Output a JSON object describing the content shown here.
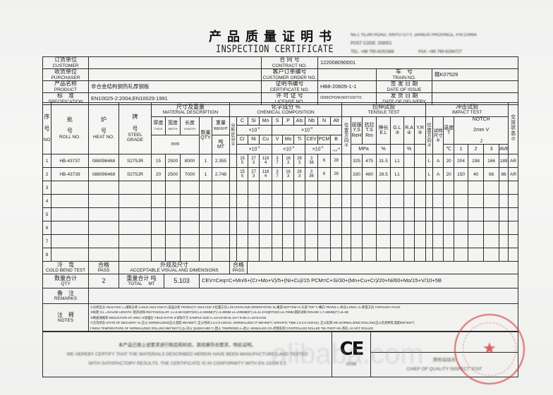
{
  "title_cn": "产品质量证明书",
  "title_en": "INSPECTION CERTIFICATE",
  "company": {
    "address": "No.1 YEJIN ROAD, XINYU CITY, JIANGXI PROVINCE, P.R.CHINA",
    "post": "POST CODE: 338001",
    "tel": "TEL: +86 790-6292388",
    "fax": "FAX: +86 790-6294727"
  },
  "info": {
    "customer": {
      "cn": "订货单位",
      "en": "CUSTOMER",
      "value": ""
    },
    "purchaser": {
      "cn": "收货单位",
      "en": "PURCHASER",
      "value": ""
    },
    "product": {
      "cn": "产品名称",
      "en": "PRODUCT",
      "value": "非合金结构钢热轧厚钢板"
    },
    "specification": {
      "cn": "标　准",
      "en": "SPECIFICATION",
      "value": "EN10025-2:2004,EN10029:1991"
    },
    "contract_no": {
      "cn": "合 同 号",
      "en": "CONTRACT NO.",
      "value": "122008090001"
    },
    "customer_order_no": {
      "cn": "客户订单编号",
      "en": "CUSTOMER ORDER NO.",
      "value": ""
    },
    "certificate_no": {
      "cn": "证明书编号",
      "en": "CERTIFICATE NO.",
      "value": "HB8-20609-1-1"
    },
    "license_no": {
      "cn": "许 可 证 号",
      "en": "LICENSE NO.",
      "value": "0038/CPD/M.M/0710077/1"
    },
    "train_no": {
      "cn": "车　号",
      "en": "TRAIN NO.",
      "value": "赣K07529"
    },
    "date_of_issue": {
      "cn": "签 发 日 期",
      "en": "DATE OF ISSUE",
      "value": ""
    },
    "date_of_delivery": {
      "cn": "发 货 日 期",
      "en": "DATE OF DELIVERY",
      "value": ""
    }
  },
  "headers": {
    "no": {
      "cn1": "序",
      "cn2": "号",
      "en": "NO"
    },
    "roll": {
      "cn1": "批",
      "cn2": "号",
      "en": "ROLL NO."
    },
    "heat": {
      "cn1": "炉",
      "cn2": "号",
      "en": "HEAT NO."
    },
    "grade": {
      "cn1": "牌",
      "cn2": "号",
      "en": "STEEL GRADE"
    },
    "material": {
      "cn": "尺寸及重量",
      "en": "MATERIAL DESCRIPTION"
    },
    "thick": {
      "cn": "厚度",
      "en": "THICK"
    },
    "width": {
      "cn": "宽度",
      "en": "WIDTH"
    },
    "length": {
      "cn": "长度",
      "en": "LENGTH"
    },
    "mm": "mm",
    "qty": {
      "cn": "数量",
      "en": "QTY"
    },
    "weight": {
      "cn": "重量",
      "en": "WEIGHT",
      "unit_cn": "吨",
      "unit_en": "MT"
    },
    "chemical": {
      "cn": "化学成分 %",
      "en": "CHEMICAL COMPOSITION"
    },
    "analysis": "分析区分①",
    "elements_row1": [
      "C",
      "Si",
      "Mn",
      "S",
      "P",
      "Als",
      "Nb",
      "N",
      "Alt"
    ],
    "elements_row2": [
      "Cr",
      "Ni",
      "Cu",
      "V",
      "Mo",
      "Ti",
      "CEV",
      "PCM",
      "B"
    ],
    "factor_e2": "×10",
    "exp_2": "-2",
    "exp_3": "-3",
    "exp_4": "-4",
    "tensile": {
      "cn": "拉伸试验",
      "en": "TENSILE TEST"
    },
    "position": "位置方向②",
    "ys": {
      "cn": "屈服",
      "en": "Y.S",
      "sub": "ReH"
    },
    "ts": {
      "cn": "抗拉",
      "en": "T.S",
      "sub": "Rm"
    },
    "el": {
      "cn": "伸长",
      "en": "E.L"
    },
    "gl": {
      "en": "G.L",
      "mark": "③"
    },
    "ra": {
      "en": "R.A",
      "mark": "④"
    },
    "yr": {
      "en": "Y.R",
      "mark": "⑤"
    },
    "mpa": "MPa",
    "pct": "%",
    "impact": {
      "cn": "冲击试验",
      "en": "IMPACT TEST"
    },
    "sample": "试样尺寸⑥",
    "temp": {
      "cn": "温度",
      "en": "T",
      "unit": "℃"
    },
    "notch": {
      "en": "NOTCH",
      "type": "2mm V",
      "unit": "J"
    },
    "impact_cols": [
      "1",
      "2",
      "3",
      "AVE"
    ],
    "delivery": "交货状态⑦"
  },
  "rows": [
    {
      "no": "1",
      "roll": "HB-43737",
      "heat": "088096468",
      "grade": "S275JR",
      "thick": "15",
      "width": "2500",
      "length": "8000",
      "qty": "1",
      "weight": "2.355",
      "analysis": "",
      "chem": [
        [
          "15",
          "5"
        ],
        [
          "27",
          "3"
        ],
        [
          "118",
          "4"
        ],
        [
          "3",
          "7"
        ],
        [
          "16",
          "3"
        ],
        [
          "26",
          "3"
        ],
        [
          "3",
          "36"
        ],
        [
          "6",
          ""
        ],
        [
          "28",
          ""
        ]
      ],
      "tensile": [
        "",
        "325",
        "475",
        "31.5",
        "L1",
        "",
        ""
      ],
      "impact": [
        "L",
        "A",
        "20",
        "204",
        "198",
        "166",
        "189"
      ],
      "delivery": "AR"
    },
    {
      "no": "2",
      "roll": "HB-43739",
      "heat": "088096468",
      "grade": "S275JR",
      "thick": "20",
      "width": "2500",
      "length": "7000",
      "qty": "1",
      "weight": "2.748",
      "analysis": "",
      "chem": [
        [
          "15",
          "5"
        ],
        [
          "27",
          "3"
        ],
        [
          "118",
          "4"
        ],
        [
          "3",
          "7"
        ],
        [
          "16",
          "3"
        ],
        [
          "26",
          "3"
        ],
        [
          "3",
          "36"
        ],
        [
          "6",
          ""
        ],
        [
          "28",
          ""
        ]
      ],
      "tensile": [
        "",
        "330",
        "480",
        "26.5",
        "L1",
        "",
        ""
      ],
      "impact": [
        "L",
        "A",
        "20",
        "150",
        "40",
        "68",
        "86"
      ],
      "delivery": "AR"
    },
    {
      "no": "3"
    },
    {
      "no": "4"
    },
    {
      "no": "5"
    },
    {
      "no": "6"
    },
    {
      "no": "7"
    },
    {
      "no": "8"
    }
  ],
  "summary": {
    "cold_bend": {
      "cn": "冷　弯",
      "en": "COLD BEND TEST",
      "result_cn": "合格",
      "result_en": "PASS"
    },
    "visual": {
      "cn": "外观及尺寸",
      "en": "ACCEPTABLE VISUAL AND DIMENSIONS",
      "result_cn": "合格",
      "result_en": "PASS"
    },
    "qty": {
      "cn": "数量合计",
      "en": "QTY",
      "value": "2"
    },
    "total": {
      "cn": "重量合计",
      "en": "TOTAL",
      "unit_cn": "吨",
      "unit_en": "MT",
      "value": "5.103"
    },
    "formula": "CEV=Ceq=C+Mn/6+(Cr+Mo+V)/5+(Ni+Cu)/15    PCM=C+Si/30+(Mn+Cu+Cr)/20+Ni/60+Mo/15+V/10+5B",
    "remarks": {
      "cn": "备　注",
      "en": "REMARKS",
      "value": ""
    },
    "notes": {
      "cn": "注　释",
      "en": "NOTES",
      "lines": [
        "①分析区分 ANALYSIS: L=熔炼分析 LADLE ANALYSIS  P=成品分析 PRODUCT ANALYSIS  ②位置方向 LOCATION AND ORIENTATION: B=尾部 BOTTOM  H=头部 TOP  T=横向 TRANS L=纵向 LONGI.  Z=厚度方向 THROUGH-THICK",
        "③标距 G.L.=GAUGE LENGTH: 矩形试样 RECTANGULAR: L1=5.65×SQRT(S0)  L2=50MM(2\")  L3=80MM  L4=200MM(8\")  L5=11.3×SQRT(S0)  L6=70MM  圆形试样 ROUND: L7=50MM(2\")  L8=5D",
        "④断面收缩率 REDUCTION OF AREA ⑤屈强比 YIELD RATIO ⑥试样尺寸 SAMPLE SIZE  A=10×10×55  B=10×7.5×55  C=10×5.0×55",
        "⑦交货状态 STATE OF DELIVERY: N=正火 NORMALIZED(正火温度 900-950℃  正火时间:1.5-2.5 min/mm. NORMALIZED AT 900-950℃ SPECIFIC TIME 1.5-2.5 min/mm). 正火轧制 NR=NORMALIZING ROLLING(正火轧制终轧温度890°920℃",
        "FINISH TEMPERATURE OF NORMALIZING ROLLING 890°920℃)  Q=淬火 QUENCHED  T=回火 TEMPERED  A=退火 ANNEALED CR=控制轧制 CONTROLLED ROLLED  TM=TMCP  AR=热轧 AS HOT ROLLED"
      ]
    },
    "certify": {
      "cn": "本产品已按上述要求进行制造和检验，其结果符合要求，特此证明。",
      "en1": "WE HEREBY CERTIFY THAT THE MATERIALS DESCRIBED HEREIN HAVE BEEN MANUFACTURED AND TESTED",
      "en2": "WITH SATISFACTORY RESULTS. THE CERTIFICATE IS IN CONFORMITY WITH EN 10204 3.1"
    },
    "ce_mark": "CE",
    "ce_number": "0038",
    "chief": {
      "cn": "质检站站长",
      "en": "CHIEF OF QUALITY INSPECT STAT"
    }
  },
  "watermark": "alibaba.com",
  "colors": {
    "ink": "#222222",
    "stamp": "#d23c3c",
    "paper": "#f3f3f2"
  }
}
